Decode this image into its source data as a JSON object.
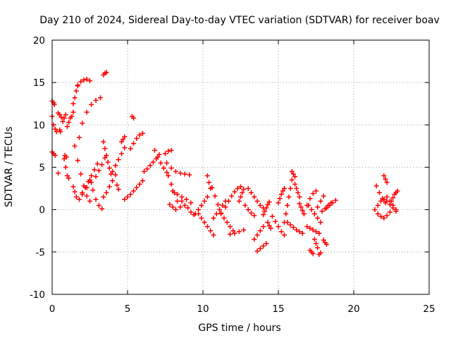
{
  "chart_data": {
    "type": "scatter",
    "title": "Day 210 of 2024, Sidereal Day-to-day VTEC variation (SDTVAR) for receiver boav",
    "xlabel": "GPS time / hours",
    "ylabel": "SDTVAR / TECUs",
    "xlim": [
      0,
      25
    ],
    "ylim": [
      -10,
      20
    ],
    "x_ticks": [
      0,
      5,
      10,
      15,
      20,
      25
    ],
    "y_ticks": [
      -10,
      -5,
      0,
      5,
      10,
      15,
      20
    ],
    "grid": true,
    "marker": "+",
    "series_color": "#ff0000",
    "segments": [
      {
        "x": [
          0.0,
          0.1,
          0.2,
          0.3
        ],
        "y": [
          11.0,
          10.0,
          9.5,
          9.2
        ]
      },
      {
        "x": [
          0.0,
          0.1,
          0.15
        ],
        "y": [
          12.8,
          12.6,
          12.4
        ]
      },
      {
        "x": [
          0.0,
          0.1,
          0.2
        ],
        "y": [
          6.8,
          6.6,
          6.4
        ]
      },
      {
        "x": [
          0.4,
          0.5,
          0.6
        ],
        "y": [
          11.4,
          11.2,
          10.9
        ]
      },
      {
        "x": [
          0.5,
          0.55
        ],
        "y": [
          9.4,
          9.2
        ]
      },
      {
        "x": [
          0.4
        ],
        "y": [
          4.3
        ]
      },
      {
        "x": [
          0.7,
          0.8,
          0.9
        ],
        "y": [
          10.4,
          10.8,
          11.2
        ]
      },
      {
        "x": [
          0.85,
          0.95
        ],
        "y": [
          6.4,
          6.2
        ]
      },
      {
        "x": [
          0.8,
          0.9,
          1.0,
          1.1
        ],
        "y": [
          6.0,
          5.0,
          4.0,
          3.7
        ]
      },
      {
        "x": [
          1.0,
          1.1,
          1.2
        ],
        "y": [
          9.8,
          10.3,
          10.8
        ]
      },
      {
        "x": [
          1.3,
          1.4
        ],
        "y": [
          11.0,
          11.5
        ]
      },
      {
        "x": [
          1.4,
          1.5,
          1.6,
          1.7
        ],
        "y": [
          12.5,
          13.2,
          14.0,
          14.6
        ]
      },
      {
        "x": [
          1.7,
          1.9,
          2.1,
          2.3,
          2.5
        ],
        "y": [
          14.7,
          15.1,
          15.3,
          15.4,
          15.2
        ]
      },
      {
        "x": [
          1.4,
          1.5,
          1.6
        ],
        "y": [
          2.7,
          2.1,
          1.5
        ]
      },
      {
        "x": [
          1.5,
          1.7,
          1.9,
          2.1,
          2.3,
          2.5
        ],
        "y": [
          7.5,
          5.8,
          4.2,
          2.8,
          1.6,
          1.0
        ]
      },
      {
        "x": [
          1.8,
          2.0,
          2.3,
          2.6,
          2.9,
          3.2
        ],
        "y": [
          8.5,
          10.2,
          11.5,
          12.4,
          12.9,
          13.2
        ]
      },
      {
        "x": [
          1.8,
          2.0,
          2.2,
          2.4,
          2.6,
          2.8,
          3.0
        ],
        "y": [
          1.2,
          1.8,
          2.6,
          3.3,
          4.0,
          4.7,
          5.4
        ]
      },
      {
        "x": [
          2.0,
          2.3,
          2.6,
          2.9,
          3.1,
          3.3,
          3.5
        ],
        "y": [
          2.0,
          2.6,
          3.2,
          3.9,
          4.6,
          5.3,
          6.1
        ]
      },
      {
        "x": [
          2.5,
          2.7,
          2.9,
          3.1,
          3.3
        ],
        "y": [
          3.5,
          2.3,
          1.2,
          0.5,
          0.1
        ]
      },
      {
        "x": [
          3.4,
          3.5,
          3.6
        ],
        "y": [
          15.9,
          16.1,
          16.2
        ]
      },
      {
        "x": [
          3.4,
          3.5,
          3.6,
          3.7,
          3.8,
          3.9
        ],
        "y": [
          8.0,
          7.2,
          6.4,
          5.6,
          4.9,
          4.2
        ]
      },
      {
        "x": [
          3.4,
          3.6,
          3.8,
          4.0,
          4.2
        ],
        "y": [
          1.5,
          2.0,
          2.7,
          3.4,
          4.1
        ]
      },
      {
        "x": [
          4.0,
          4.2,
          4.4,
          4.6,
          4.8
        ],
        "y": [
          4.5,
          5.2,
          5.9,
          6.6,
          7.3
        ]
      },
      {
        "x": [
          4.3,
          4.4
        ],
        "y": [
          2.9,
          2.4
        ]
      },
      {
        "x": [
          4.6,
          4.7,
          4.8
        ],
        "y": [
          8.0,
          8.3,
          8.6
        ]
      },
      {
        "x": [
          4.8
        ],
        "y": [
          1.2
        ]
      },
      {
        "x": [
          5.0,
          5.2,
          5.4,
          5.6,
          5.8,
          6.0
        ],
        "y": [
          1.5,
          1.8,
          2.2,
          2.6,
          3.0,
          3.4
        ]
      },
      {
        "x": [
          5.2,
          5.4,
          5.6,
          5.8,
          6.0
        ],
        "y": [
          7.2,
          7.8,
          8.4,
          8.8,
          9.0
        ]
      },
      {
        "x": [
          5.3,
          5.4
        ],
        "y": [
          11.0,
          10.8
        ]
      },
      {
        "x": [
          6.1,
          6.3,
          6.5,
          6.7,
          6.9,
          7.1
        ],
        "y": [
          4.5,
          4.8,
          5.2,
          5.6,
          6.0,
          6.5
        ]
      },
      {
        "x": [
          6.8,
          7.0,
          7.2,
          7.4,
          7.6
        ],
        "y": [
          7.0,
          6.2,
          5.5,
          4.9,
          4.4
        ]
      },
      {
        "x": [
          7.5,
          7.7,
          7.9
        ],
        "y": [
          6.6,
          6.9,
          7.0
        ]
      },
      {
        "x": [
          7.6,
          7.9,
          8.2,
          8.5,
          8.8,
          9.1
        ],
        "y": [
          5.5,
          4.9,
          4.5,
          4.3,
          4.2,
          4.1
        ]
      },
      {
        "x": [
          7.7,
          7.9,
          8.1,
          8.3,
          8.5
        ],
        "y": [
          4.0,
          3.0,
          2.0,
          1.0,
          0.3
        ]
      },
      {
        "x": [
          8.0,
          8.3,
          8.6,
          8.9,
          9.2
        ],
        "y": [
          2.2,
          1.8,
          1.5,
          1.2,
          0.8
        ]
      },
      {
        "x": [
          7.8,
          8.0,
          8.2
        ],
        "y": [
          0.6,
          0.3,
          0.0
        ]
      },
      {
        "x": [
          8.6,
          8.8,
          9.0,
          9.2,
          9.4
        ],
        "y": [
          1.0,
          0.5,
          0.2,
          -0.3,
          -0.6
        ]
      },
      {
        "x": [
          9.5,
          9.7,
          9.9,
          10.1,
          10.3
        ],
        "y": [
          -0.5,
          0.0,
          0.5,
          1.0,
          1.5
        ]
      },
      {
        "x": [
          9.7,
          9.9,
          10.1,
          10.3,
          10.5,
          10.7
        ],
        "y": [
          -0.5,
          -1.0,
          -1.5,
          -2.0,
          -2.5,
          -3.0
        ]
      },
      {
        "x": [
          10.3,
          10.4,
          10.5
        ],
        "y": [
          4.0,
          3.2,
          2.5
        ]
      },
      {
        "x": [
          10.6,
          10.8,
          11.0,
          11.2
        ],
        "y": [
          2.6,
          1.6,
          0.6,
          -0.4
        ]
      },
      {
        "x": [
          10.7,
          10.9,
          11.1,
          11.3,
          11.5
        ],
        "y": [
          -1.0,
          -0.5,
          0.0,
          0.5,
          1.0
        ]
      },
      {
        "x": [
          11.2,
          11.4,
          11.6,
          11.8,
          12.0
        ],
        "y": [
          -0.5,
          -1.0,
          -1.5,
          -2.0,
          -2.5
        ]
      },
      {
        "x": [
          11.5,
          11.7,
          11.9,
          12.1,
          12.3,
          12.5
        ],
        "y": [
          0.3,
          1.0,
          1.6,
          2.1,
          2.5,
          2.7
        ]
      },
      {
        "x": [
          11.8,
          12.1,
          12.4,
          12.7
        ],
        "y": [
          -2.9,
          -2.8,
          -2.6,
          -2.4
        ]
      },
      {
        "x": [
          12.4,
          12.5,
          12.6,
          12.7
        ],
        "y": [
          1.0,
          1.5,
          2.0,
          2.4
        ]
      },
      {
        "x": [
          12.8,
          13.0,
          13.2,
          13.4
        ],
        "y": [
          0.5,
          0.0,
          -0.4,
          -0.7
        ]
      },
      {
        "x": [
          13.0,
          13.2,
          13.4,
          13.6,
          13.8,
          14.0
        ],
        "y": [
          2.5,
          2.0,
          1.5,
          1.0,
          0.5,
          0.2
        ]
      },
      {
        "x": [
          13.4,
          13.6,
          13.8,
          14.0
        ],
        "y": [
          -3.5,
          -3.0,
          -2.5,
          -2.0
        ]
      },
      {
        "x": [
          13.6,
          13.8,
          14.0,
          14.2
        ],
        "y": [
          -4.9,
          -4.6,
          -4.3,
          -4.0
        ]
      },
      {
        "x": [
          14.0,
          14.1,
          14.2,
          14.3,
          14.4
        ],
        "y": [
          -0.6,
          -0.2,
          0.2,
          0.6,
          0.9
        ]
      },
      {
        "x": [
          14.3,
          14.4,
          14.5
        ],
        "y": [
          -1.5,
          -1.9,
          -2.2
        ]
      },
      {
        "x": [
          14.6,
          14.8,
          15.0,
          15.2,
          15.4
        ],
        "y": [
          -0.8,
          -1.4,
          -2.0,
          -2.6,
          -3.0
        ]
      },
      {
        "x": [
          15.0,
          15.1,
          15.2,
          15.3,
          15.4
        ],
        "y": [
          0.8,
          1.3,
          1.8,
          2.2,
          2.5
        ]
      },
      {
        "x": [
          15.4,
          15.5,
          15.6,
          15.7,
          15.8,
          15.9
        ],
        "y": [
          -1.5,
          -0.5,
          0.5,
          1.5,
          2.5,
          3.5
        ]
      },
      {
        "x": [
          15.6,
          15.8,
          16.0,
          16.2,
          16.4,
          16.6
        ],
        "y": [
          -1.5,
          -1.8,
          -2.1,
          -2.4,
          -2.6,
          -2.8
        ]
      },
      {
        "x": [
          15.9,
          16.0,
          16.1
        ],
        "y": [
          4.5,
          4.2,
          3.9
        ]
      },
      {
        "x": [
          16.1,
          16.2,
          16.3,
          16.4
        ],
        "y": [
          3.0,
          2.5,
          2.0,
          1.5
        ]
      },
      {
        "x": [
          16.4,
          16.5,
          16.6,
          16.7
        ],
        "y": [
          0.7,
          0.3,
          -0.1,
          -0.5
        ]
      },
      {
        "x": [
          16.7,
          16.9,
          17.1,
          17.3,
          17.5
        ],
        "y": [
          -0.5,
          0.5,
          1.3,
          1.9,
          2.2
        ]
      },
      {
        "x": [
          16.9,
          17.1,
          17.3,
          17.5,
          17.7
        ],
        "y": [
          -2.0,
          -2.2,
          -2.4,
          -2.6,
          -2.8
        ]
      },
      {
        "x": [
          17.0,
          17.2,
          17.4,
          17.6,
          17.8
        ],
        "y": [
          0.5,
          0.0,
          -0.5,
          -1.0,
          -1.5
        ]
      },
      {
        "x": [
          17.1,
          17.2,
          17.3
        ],
        "y": [
          -4.8,
          -5.0,
          -5.2
        ]
      },
      {
        "x": [
          17.4,
          17.5,
          17.6
        ],
        "y": [
          -3.5,
          -4.0,
          -4.5
        ]
      },
      {
        "x": [
          17.7,
          17.8
        ],
        "y": [
          -5.3,
          -5.1
        ]
      },
      {
        "x": [
          17.4,
          17.6,
          17.8,
          18.0
        ],
        "y": [
          -0.5,
          0.3,
          1.0,
          1.6
        ]
      },
      {
        "x": [
          17.9,
          18.1,
          18.3,
          18.5
        ],
        "y": [
          -0.2,
          0.1,
          0.5,
          0.8
        ]
      },
      {
        "x": [
          18.0,
          18.1,
          18.2
        ],
        "y": [
          -3.6,
          -3.9,
          -4.1
        ]
      },
      {
        "x": [
          18.2,
          18.4,
          18.6,
          18.8
        ],
        "y": [
          0.2,
          0.5,
          0.8,
          1.1
        ]
      },
      {
        "x": [
          21.4,
          21.6,
          21.8,
          22.0,
          22.2,
          22.4,
          22.6,
          22.8
        ],
        "y": [
          0.0,
          0.5,
          1.0,
          1.2,
          1.0,
          0.6,
          0.2,
          -0.2
        ]
      },
      {
        "x": [
          21.5,
          21.7,
          21.9,
          22.1
        ],
        "y": [
          2.8,
          2.0,
          1.3,
          0.8
        ]
      },
      {
        "x": [
          21.6,
          21.8,
          22.0,
          22.2,
          22.4
        ],
        "y": [
          -0.5,
          -0.8,
          -1.0,
          -0.7,
          -0.3
        ]
      },
      {
        "x": [
          22.0,
          22.1,
          22.2
        ],
        "y": [
          4.0,
          3.6,
          3.2
        ]
      },
      {
        "x": [
          22.2,
          22.4,
          22.6,
          22.8
        ],
        "y": [
          1.5,
          1.0,
          0.5,
          0.0
        ]
      },
      {
        "x": [
          22.5,
          22.6,
          22.7,
          22.8,
          22.9
        ],
        "y": [
          1.0,
          1.4,
          1.8,
          2.0,
          2.2
        ]
      }
    ]
  }
}
